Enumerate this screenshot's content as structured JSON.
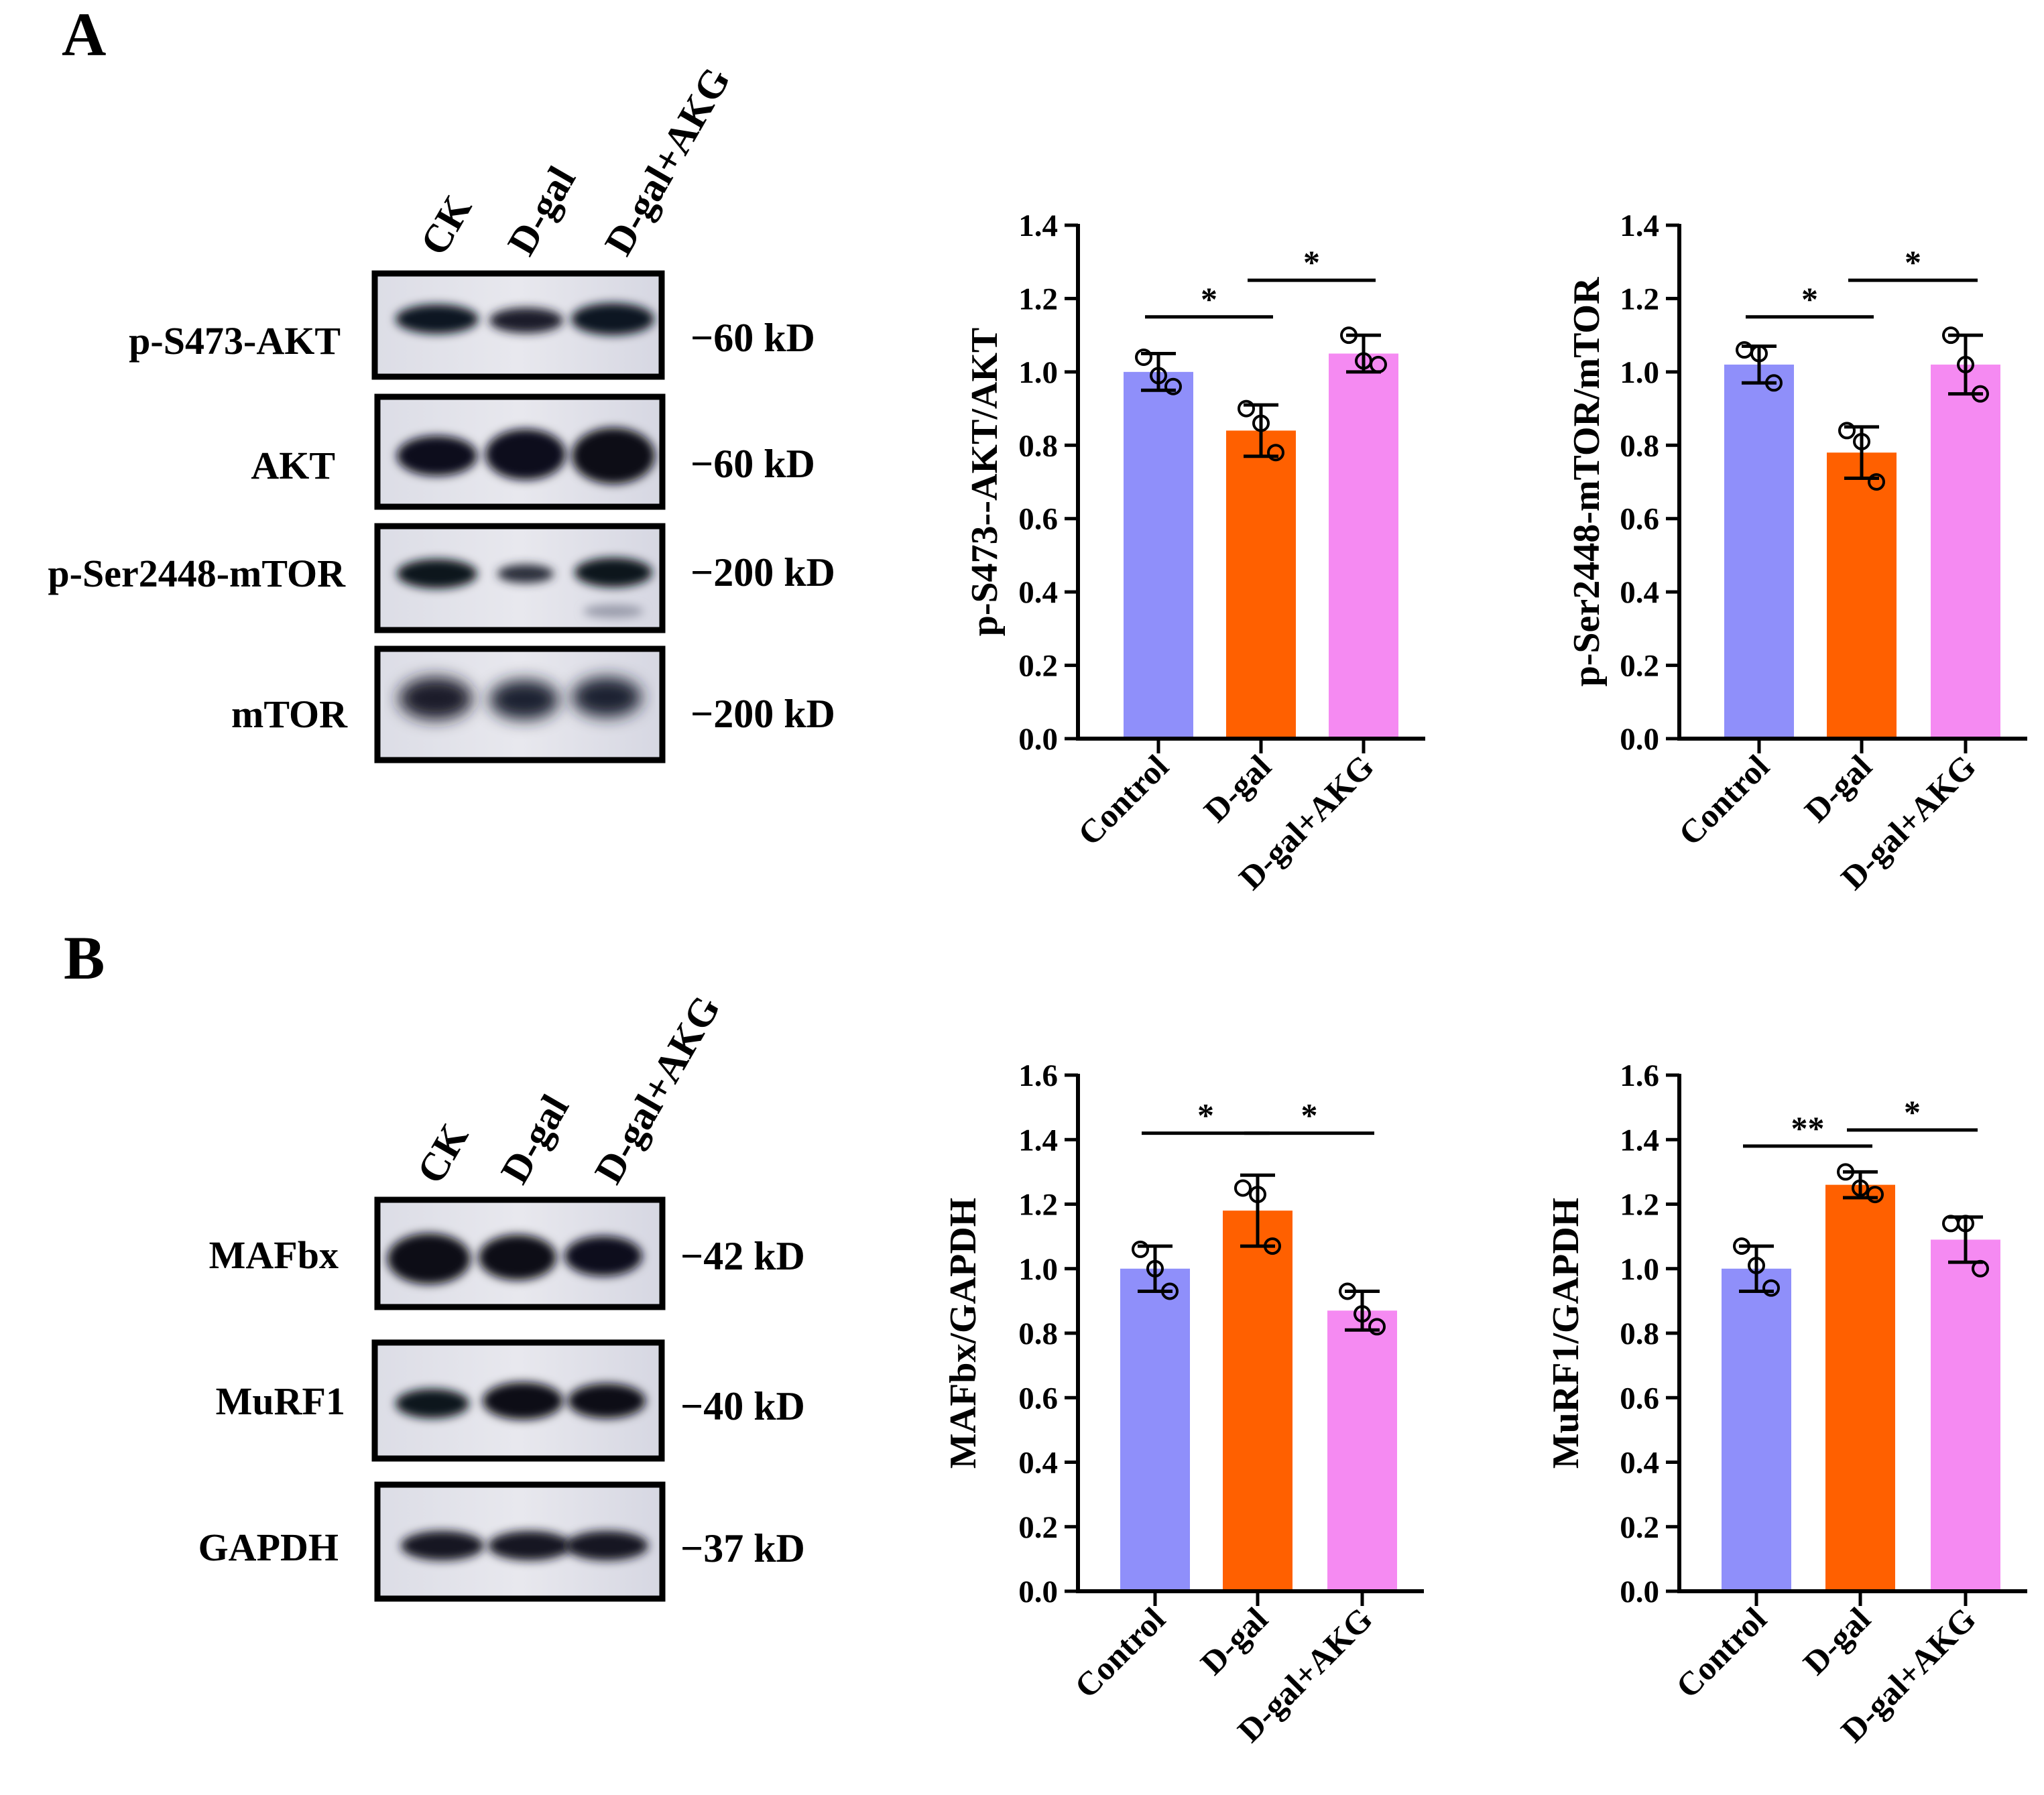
{
  "panels": {
    "a": {
      "letter": "A",
      "lanes": [
        "CK",
        "D-gal",
        "D-gal+AKG"
      ],
      "blots": [
        {
          "protein": "p-S473-AKT",
          "marker": "−60 kD"
        },
        {
          "protein": "AKT",
          "marker": "−60 kD"
        },
        {
          "protein": "p-Ser2448-mTOR",
          "marker": "−200 kD"
        },
        {
          "protein": "mTOR",
          "marker": "−200 kD"
        }
      ]
    },
    "b": {
      "letter": "B",
      "lanes": [
        "CK",
        "D-gal",
        "D-gal+AKG"
      ],
      "blots": [
        {
          "protein": "MAFbx",
          "marker": "−42 kD"
        },
        {
          "protein": "MuRF1",
          "marker": "−40 kD"
        },
        {
          "protein": "GAPDH",
          "marker": "−37 kD"
        }
      ]
    }
  },
  "colors": {
    "control": "#8f8ffa",
    "dgal": "#ff6000",
    "akg": "#f58af2",
    "axis": "#000000",
    "point": "#000000"
  },
  "chart_data": [
    {
      "type": "bar",
      "ylabel": "p-S473--AKT/AKT",
      "categories": [
        "Control",
        "D-gal",
        "D-gal+AKG"
      ],
      "values": [
        1.0,
        0.84,
        1.05
      ],
      "errors": [
        0.05,
        0.07,
        0.05
      ],
      "points": [
        [
          1.04,
          0.99,
          0.96
        ],
        [
          0.9,
          0.86,
          0.78
        ],
        [
          1.1,
          1.03,
          1.02
        ]
      ],
      "ylim": [
        0,
        1.4
      ],
      "yticks": [
        "0.0",
        "0.2",
        "0.4",
        "0.6",
        "0.8",
        "1.0",
        "1.2",
        "1.4"
      ],
      "significance": [
        {
          "from": 0,
          "to": 1,
          "label": "*",
          "y": 1.15
        },
        {
          "from": 1,
          "to": 2,
          "label": "*",
          "y": 1.25
        }
      ]
    },
    {
      "type": "bar",
      "ylabel": "p-Ser2448-mTOR/mTOR",
      "categories": [
        "Control",
        "D-gal",
        "D-gal+AKG"
      ],
      "values": [
        1.02,
        0.78,
        1.02
      ],
      "errors": [
        0.05,
        0.07,
        0.08
      ],
      "points": [
        [
          1.06,
          1.05,
          0.97
        ],
        [
          0.84,
          0.81,
          0.7
        ],
        [
          1.1,
          1.02,
          0.94
        ]
      ],
      "ylim": [
        0,
        1.4
      ],
      "yticks": [
        "0.0",
        "0.2",
        "0.4",
        "0.6",
        "0.8",
        "1.0",
        "1.2",
        "1.4"
      ],
      "significance": [
        {
          "from": 0,
          "to": 1,
          "label": "*",
          "y": 1.15
        },
        {
          "from": 1,
          "to": 2,
          "label": "*",
          "y": 1.25
        }
      ]
    },
    {
      "type": "bar",
      "ylabel": "MAFbx/GAPDH",
      "categories": [
        "Control",
        "D-gal",
        "D-gal+AKG"
      ],
      "values": [
        1.0,
        1.18,
        0.87
      ],
      "errors": [
        0.07,
        0.11,
        0.06
      ],
      "points": [
        [
          1.06,
          1.0,
          0.93
        ],
        [
          1.25,
          1.23,
          1.07
        ],
        [
          0.93,
          0.86,
          0.82
        ]
      ],
      "ylim": [
        0,
        1.6
      ],
      "yticks": [
        "0.0",
        "0.2",
        "0.4",
        "0.6",
        "0.8",
        "1.0",
        "1.2",
        "1.4",
        "1.6"
      ],
      "significance": [
        {
          "from": 0,
          "to": 1,
          "label": "*",
          "y": 1.42
        },
        {
          "from": 1,
          "to": 2,
          "label": "*",
          "y": 1.42
        }
      ]
    },
    {
      "type": "bar",
      "ylabel": "MuRF1/GAPDH",
      "categories": [
        "Control",
        "D-gal",
        "D-gal+AKG"
      ],
      "values": [
        1.0,
        1.26,
        1.09
      ],
      "errors": [
        0.07,
        0.04,
        0.07
      ],
      "points": [
        [
          1.07,
          1.01,
          0.94
        ],
        [
          1.3,
          1.25,
          1.23
        ],
        [
          1.14,
          1.14,
          1.0
        ]
      ],
      "ylim": [
        0,
        1.6
      ],
      "yticks": [
        "0.0",
        "0.2",
        "0.4",
        "0.6",
        "0.8",
        "1.0",
        "1.2",
        "1.4",
        "1.6"
      ],
      "significance": [
        {
          "from": 0,
          "to": 1,
          "label": "**",
          "y": 1.38
        },
        {
          "from": 1,
          "to": 2,
          "label": "*",
          "y": 1.43
        }
      ]
    }
  ]
}
